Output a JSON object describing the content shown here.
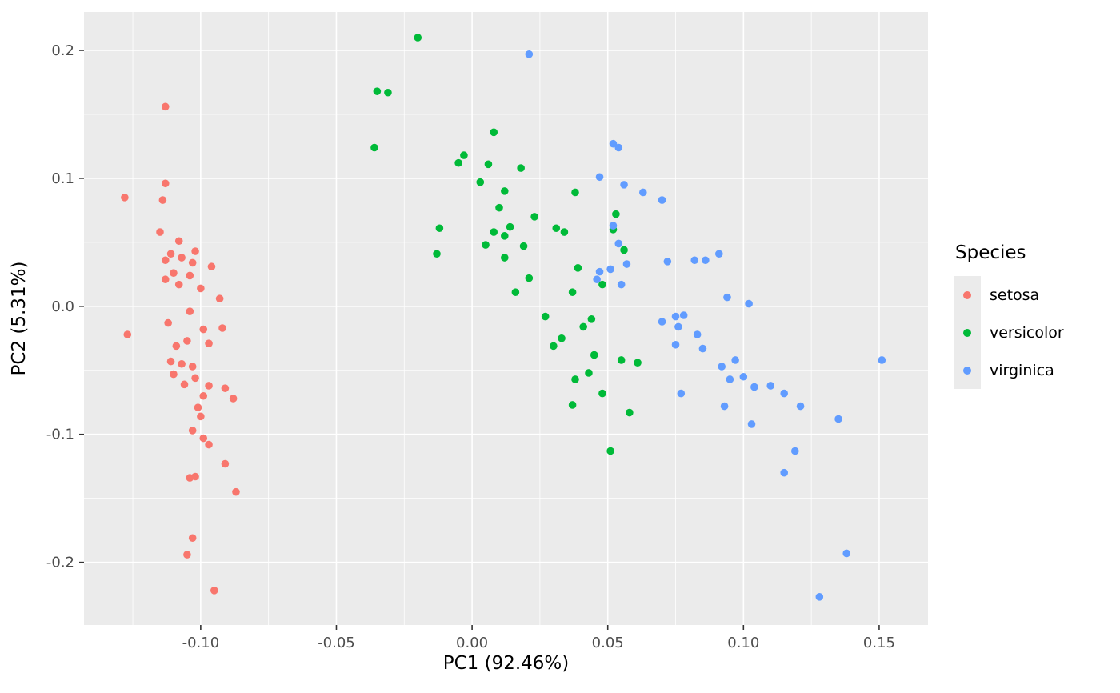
{
  "colors": {
    "panel_bg": "#EBEBEB",
    "grid": "#FFFFFF",
    "tick_mark": "#333333",
    "tick_text": "#4D4D4D",
    "axis_title": "#000000"
  },
  "chart_data": {
    "type": "scatter",
    "title": "",
    "xlabel": "PC1 (92.46%)",
    "ylabel": "PC2 (5.31%)",
    "xlim": [
      -0.143,
      0.168
    ],
    "ylim": [
      -0.249,
      0.23
    ],
    "x_ticks": [
      -0.1,
      -0.05,
      0.0,
      0.05,
      0.1,
      0.15
    ],
    "x_tick_labels": [
      "-0.10",
      "-0.05",
      "0.00",
      "0.05",
      "0.10",
      "0.15"
    ],
    "x_minor_ticks": [
      -0.125,
      -0.075,
      -0.025,
      0.025,
      0.075,
      0.125
    ],
    "y_ticks": [
      -0.2,
      -0.1,
      0.0,
      0.1,
      0.2
    ],
    "y_tick_labels": [
      "-0.2",
      "-0.1",
      "0.0",
      "0.1",
      "0.2"
    ],
    "y_minor_ticks": [
      -0.15,
      -0.05,
      0.05,
      0.15
    ],
    "grid": true,
    "legend": {
      "title": "Species",
      "position": "right"
    },
    "point_radius": 4.8,
    "series": [
      {
        "name": "setosa",
        "color": "#F8766D",
        "points": [
          [
            -0.113,
            0.156
          ],
          [
            -0.113,
            0.096
          ],
          [
            -0.128,
            0.085
          ],
          [
            -0.114,
            0.083
          ],
          [
            -0.115,
            0.058
          ],
          [
            -0.108,
            0.051
          ],
          [
            -0.102,
            0.043
          ],
          [
            -0.111,
            0.041
          ],
          [
            -0.107,
            0.038
          ],
          [
            -0.113,
            0.036
          ],
          [
            -0.103,
            0.034
          ],
          [
            -0.096,
            0.031
          ],
          [
            -0.11,
            0.026
          ],
          [
            -0.104,
            0.024
          ],
          [
            -0.113,
            0.021
          ],
          [
            -0.108,
            0.017
          ],
          [
            -0.1,
            0.014
          ],
          [
            -0.093,
            0.006
          ],
          [
            -0.104,
            -0.004
          ],
          [
            -0.112,
            -0.013
          ],
          [
            -0.127,
            -0.022
          ],
          [
            -0.099,
            -0.018
          ],
          [
            -0.092,
            -0.017
          ],
          [
            -0.105,
            -0.027
          ],
          [
            -0.097,
            -0.029
          ],
          [
            -0.109,
            -0.031
          ],
          [
            -0.111,
            -0.043
          ],
          [
            -0.107,
            -0.045
          ],
          [
            -0.103,
            -0.047
          ],
          [
            -0.11,
            -0.053
          ],
          [
            -0.102,
            -0.056
          ],
          [
            -0.106,
            -0.061
          ],
          [
            -0.097,
            -0.062
          ],
          [
            -0.091,
            -0.064
          ],
          [
            -0.099,
            -0.07
          ],
          [
            -0.088,
            -0.072
          ],
          [
            -0.101,
            -0.079
          ],
          [
            -0.1,
            -0.086
          ],
          [
            -0.103,
            -0.097
          ],
          [
            -0.099,
            -0.103
          ],
          [
            -0.097,
            -0.108
          ],
          [
            -0.104,
            -0.134
          ],
          [
            -0.102,
            -0.133
          ],
          [
            -0.091,
            -0.123
          ],
          [
            -0.087,
            -0.145
          ],
          [
            -0.103,
            -0.181
          ],
          [
            -0.105,
            -0.194
          ],
          [
            -0.095,
            -0.222
          ]
        ]
      },
      {
        "name": "versicolor",
        "color": "#00BA38",
        "points": [
          [
            -0.02,
            0.21
          ],
          [
            -0.035,
            0.168
          ],
          [
            -0.031,
            0.167
          ],
          [
            -0.036,
            0.124
          ],
          [
            0.008,
            0.136
          ],
          [
            -0.003,
            0.118
          ],
          [
            -0.005,
            0.112
          ],
          [
            0.006,
            0.111
          ],
          [
            0.018,
            0.108
          ],
          [
            0.003,
            0.097
          ],
          [
            0.012,
            0.09
          ],
          [
            0.038,
            0.089
          ],
          [
            0.01,
            0.077
          ],
          [
            0.023,
            0.07
          ],
          [
            -0.012,
            0.061
          ],
          [
            0.014,
            0.062
          ],
          [
            0.008,
            0.058
          ],
          [
            0.012,
            0.055
          ],
          [
            0.005,
            0.048
          ],
          [
            0.019,
            0.047
          ],
          [
            -0.013,
            0.041
          ],
          [
            0.012,
            0.038
          ],
          [
            0.031,
            0.061
          ],
          [
            0.034,
            0.058
          ],
          [
            0.039,
            0.03
          ],
          [
            0.021,
            0.022
          ],
          [
            0.016,
            0.011
          ],
          [
            0.037,
            0.011
          ],
          [
            0.027,
            -0.008
          ],
          [
            0.041,
            -0.016
          ],
          [
            0.044,
            -0.01
          ],
          [
            0.033,
            -0.025
          ],
          [
            0.03,
            -0.031
          ],
          [
            0.053,
            0.072
          ],
          [
            0.052,
            0.06
          ],
          [
            0.056,
            0.044
          ],
          [
            0.048,
            0.017
          ],
          [
            0.045,
            -0.038
          ],
          [
            0.055,
            -0.042
          ],
          [
            0.061,
            -0.044
          ],
          [
            0.043,
            -0.052
          ],
          [
            0.038,
            -0.057
          ],
          [
            0.048,
            -0.068
          ],
          [
            0.037,
            -0.077
          ],
          [
            0.058,
            -0.083
          ],
          [
            0.051,
            -0.113
          ]
        ]
      },
      {
        "name": "virginica",
        "color": "#619CFF",
        "points": [
          [
            0.021,
            0.197
          ],
          [
            0.052,
            0.127
          ],
          [
            0.054,
            0.124
          ],
          [
            0.047,
            0.101
          ],
          [
            0.056,
            0.095
          ],
          [
            0.063,
            0.089
          ],
          [
            0.07,
            0.083
          ],
          [
            0.052,
            0.063
          ],
          [
            0.054,
            0.049
          ],
          [
            0.057,
            0.033
          ],
          [
            0.047,
            0.027
          ],
          [
            0.051,
            0.029
          ],
          [
            0.046,
            0.021
          ],
          [
            0.055,
            0.017
          ],
          [
            0.072,
            0.035
          ],
          [
            0.082,
            0.036
          ],
          [
            0.086,
            0.036
          ],
          [
            0.091,
            0.041
          ],
          [
            0.094,
            0.007
          ],
          [
            0.102,
            0.002
          ],
          [
            0.07,
            -0.012
          ],
          [
            0.075,
            -0.008
          ],
          [
            0.078,
            -0.007
          ],
          [
            0.076,
            -0.016
          ],
          [
            0.083,
            -0.022
          ],
          [
            0.075,
            -0.03
          ],
          [
            0.085,
            -0.033
          ],
          [
            0.092,
            -0.047
          ],
          [
            0.097,
            -0.042
          ],
          [
            0.095,
            -0.057
          ],
          [
            0.1,
            -0.055
          ],
          [
            0.104,
            -0.063
          ],
          [
            0.11,
            -0.062
          ],
          [
            0.077,
            -0.068
          ],
          [
            0.093,
            -0.078
          ],
          [
            0.103,
            -0.092
          ],
          [
            0.115,
            -0.068
          ],
          [
            0.121,
            -0.078
          ],
          [
            0.135,
            -0.088
          ],
          [
            0.151,
            -0.042
          ],
          [
            0.119,
            -0.113
          ],
          [
            0.115,
            -0.13
          ],
          [
            0.138,
            -0.193
          ],
          [
            0.128,
            -0.227
          ]
        ]
      }
    ]
  }
}
